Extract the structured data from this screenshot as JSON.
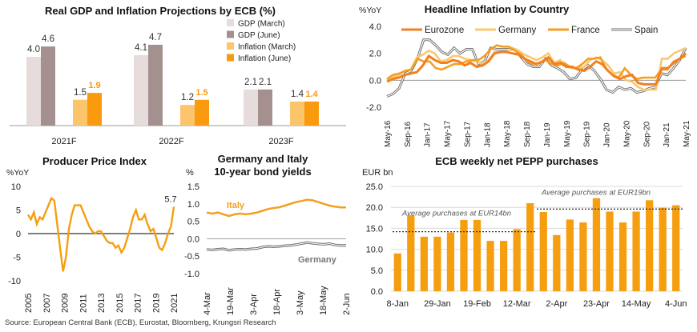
{
  "source": "Source: European Central Bank (ECB), Eurostat, Bloomberg, Krungsri Research",
  "colors": {
    "gdp_march": "#e6dcdc",
    "gdp_june": "#a3908f",
    "inf_march": "#fcc56c",
    "inf_june": "#f99a0f",
    "eurozone": "#f28020",
    "germany": "#f9c870",
    "france": "#f59f20",
    "spain": "#666666",
    "pepp": "#f59f10",
    "bond": "#f59f20"
  },
  "chart_data": [
    {
      "type": "bar",
      "title": "Real GDP and Inflation Projections by ECB (%)",
      "categories": [
        "2021F",
        "2022F",
        "2023F"
      ],
      "series": [
        {
          "name": "GDP (March)",
          "values": [
            4.0,
            4.1,
            2.1
          ]
        },
        {
          "name": "GDP (June)",
          "values": [
            4.6,
            4.7,
            2.1
          ]
        },
        {
          "name": "Inflation (March)",
          "values": [
            1.5,
            1.2,
            1.4
          ]
        },
        {
          "name": "Inflation (June)",
          "values": [
            1.9,
            1.5,
            1.4
          ]
        }
      ],
      "data_labels": [
        [
          "4.0",
          "4.6",
          "1.5",
          "1.9"
        ],
        [
          "4.1",
          "4.7",
          "1.2",
          "1.5"
        ],
        [
          "2.1",
          "2.1",
          "1.4",
          "1.4"
        ]
      ],
      "legend": "right"
    },
    {
      "type": "line",
      "title": "Headline Inflation by Country",
      "ylabel": "%YoY",
      "ylim": [
        -2,
        4
      ],
      "yticks": [
        "4.0",
        "2.0",
        "0.0",
        "-2.0"
      ],
      "xticks": [
        "May-16",
        "Sep-16",
        "Jan-17",
        "May-17",
        "Sep-17",
        "Jan-18",
        "May-18",
        "Sep-18",
        "Jan-19",
        "May-19",
        "Sep-19",
        "Jan-20",
        "May-20",
        "Sep-20",
        "Jan-21",
        "May-21"
      ],
      "series": [
        {
          "name": "Eurozone",
          "values": [
            -0.1,
            0.1,
            0.2,
            0.4,
            0.5,
            0.6,
            1.1,
            1.8,
            1.5,
            1.3,
            1.3,
            1.5,
            1.4,
            1.1,
            1.3,
            1.0,
            1.1,
            1.4,
            2.0,
            2.1,
            2.1,
            2.0,
            1.9,
            1.6,
            1.4,
            1.2,
            1.4,
            1.7,
            1.2,
            1.3,
            1.0,
            1.0,
            0.8,
            0.7,
            1.0,
            1.4,
            1.2,
            0.7,
            0.3,
            0.1,
            0.3,
            0.4,
            -0.2,
            -0.3,
            -0.3,
            -0.3,
            0.9,
            0.9,
            1.3,
            1.6,
            2.0
          ]
        },
        {
          "name": "Germany",
          "values": [
            0.0,
            0.2,
            0.4,
            0.7,
            0.8,
            1.7,
            1.9,
            2.2,
            2.0,
            1.4,
            1.5,
            1.8,
            1.8,
            1.6,
            1.5,
            1.4,
            1.2,
            1.5,
            2.1,
            2.1,
            2.1,
            2.4,
            2.2,
            1.9,
            1.7,
            1.5,
            1.7,
            2.0,
            1.3,
            1.5,
            1.0,
            0.9,
            0.9,
            1.0,
            1.5,
            1.7,
            1.5,
            1.1,
            0.5,
            0.6,
            0.0,
            -0.1,
            -0.5,
            -0.7,
            -0.7,
            -0.7,
            1.6,
            1.6,
            2.0,
            2.2,
            2.4
          ]
        },
        {
          "name": "France",
          "values": [
            0.1,
            0.4,
            0.5,
            0.7,
            0.8,
            1.6,
            1.4,
            1.4,
            0.9,
            0.8,
            1.0,
            1.2,
            1.2,
            1.4,
            1.5,
            1.5,
            1.8,
            2.3,
            2.6,
            2.5,
            2.5,
            2.2,
            1.9,
            1.4,
            1.2,
            1.3,
            1.5,
            1.2,
            1.1,
            1.3,
            1.0,
            0.9,
            1.2,
            1.6,
            1.6,
            1.7,
            0.8,
            0.4,
            0.2,
            0.9,
            0.4,
            0.1,
            0.2,
            0.2,
            0.2,
            0.8,
            0.8,
            1.4,
            1.6,
            1.8
          ]
        },
        {
          "name": "Spain",
          "values": [
            -1.2,
            -1.0,
            -0.6,
            0.5,
            0.7,
            1.6,
            3.0,
            3.0,
            2.6,
            2.1,
            1.9,
            2.4,
            2.0,
            2.3,
            2.3,
            1.2,
            1.4,
            2.4,
            2.3,
            2.3,
            2.3,
            2.3,
            1.7,
            1.2,
            1.0,
            1.0,
            1.6,
            1.1,
            0.9,
            0.6,
            0.1,
            0.2,
            0.8,
            1.1,
            0.7,
            0.1,
            -0.7,
            -0.9,
            -0.5,
            -0.7,
            -0.6,
            -0.9,
            -0.8,
            -0.6,
            -0.5,
            0.5,
            0.4,
            0.9,
            1.5,
            2.4
          ]
        }
      ],
      "grid": false,
      "legend": "top"
    },
    {
      "type": "line",
      "title": "Producer Price Index",
      "ylabel": "%YoY",
      "ylim": [
        -10,
        10
      ],
      "yticks": [
        "10",
        "5",
        "0",
        "-5",
        "-10"
      ],
      "xticks": [
        "2005",
        "2007",
        "2009",
        "2011",
        "2013",
        "2015",
        "2017",
        "2019",
        "2021"
      ],
      "annotation": "5.7",
      "series": [
        {
          "name": "",
          "values": [
            4.0,
            3.0,
            4.5,
            2.0,
            3.5,
            3.0,
            4.5,
            6.0,
            7.5,
            7.0,
            2.0,
            -3.0,
            -8.0,
            -5.0,
            1.0,
            4.0,
            6.0,
            6.0,
            6.0,
            4.5,
            3.0,
            1.5,
            0.5,
            0.0,
            0.5,
            0.5,
            -0.5,
            -1.5,
            -2.0,
            -2.0,
            -3.0,
            -2.5,
            -4.0,
            -3.0,
            -1.0,
            1.0,
            3.5,
            5.0,
            3.0,
            3.0,
            4.0,
            2.0,
            0.5,
            1.0,
            -1.0,
            -3.0,
            -3.5,
            -2.0,
            0.0,
            1.5,
            5.7
          ]
        }
      ],
      "grid": false
    },
    {
      "type": "line",
      "title": "Germany and Italy 10-year bond yields",
      "ylabel": "%",
      "ylim": [
        -1,
        1.5
      ],
      "yticks": [
        "1.5",
        "1.0",
        "0.5",
        "0.0",
        "-0.5",
        "-1.0"
      ],
      "xticks": [
        "4-Mar",
        "19-Mar",
        "3-Apr",
        "18-Apr",
        "3-May",
        "18-May",
        "2-Jun"
      ],
      "series": [
        {
          "name": "Italy",
          "values": [
            0.75,
            0.72,
            0.75,
            0.7,
            0.65,
            0.7,
            0.72,
            0.7,
            0.72,
            0.75,
            0.8,
            0.85,
            0.88,
            0.9,
            0.95,
            1.0,
            1.05,
            1.08,
            1.12,
            1.1,
            1.05,
            1.0,
            0.95,
            0.92,
            0.9,
            0.9
          ]
        },
        {
          "name": "Germany",
          "values": [
            -0.31,
            -0.32,
            -0.3,
            -0.29,
            -0.33,
            -0.31,
            -0.3,
            -0.31,
            -0.29,
            -0.28,
            -0.24,
            -0.22,
            -0.23,
            -0.22,
            -0.2,
            -0.19,
            -0.17,
            -0.14,
            -0.11,
            -0.13,
            -0.15,
            -0.16,
            -0.14,
            -0.18,
            -0.19,
            -0.19
          ]
        }
      ],
      "grid": false
    },
    {
      "type": "bar",
      "title": "ECB weekly net PEPP purchases",
      "ylabel": "EUR bn",
      "ylim": [
        0,
        25
      ],
      "yticks": [
        "25.0",
        "20.0",
        "15.0",
        "10.0",
        "5.0",
        "0.0"
      ],
      "xticks": [
        "8-Jan",
        "29-Jan",
        "19-Feb",
        "12-Mar",
        "2-Apr",
        "23-Apr",
        "14-May",
        "4-Jun"
      ],
      "values": [
        9.0,
        18.1,
        13.0,
        13.0,
        14.0,
        17.0,
        17.0,
        12.0,
        12.0,
        14.8,
        21.0,
        18.9,
        13.4,
        17.1,
        16.4,
        22.2,
        19.0,
        16.4,
        19.0,
        21.7,
        19.9,
        20.5
      ],
      "annotations": [
        {
          "text": "Average purchases at EUR14bn",
          "value": 14.2
        },
        {
          "text": "Average purchases at EUR19bn",
          "value": 19.6
        }
      ],
      "grid": true
    }
  ]
}
